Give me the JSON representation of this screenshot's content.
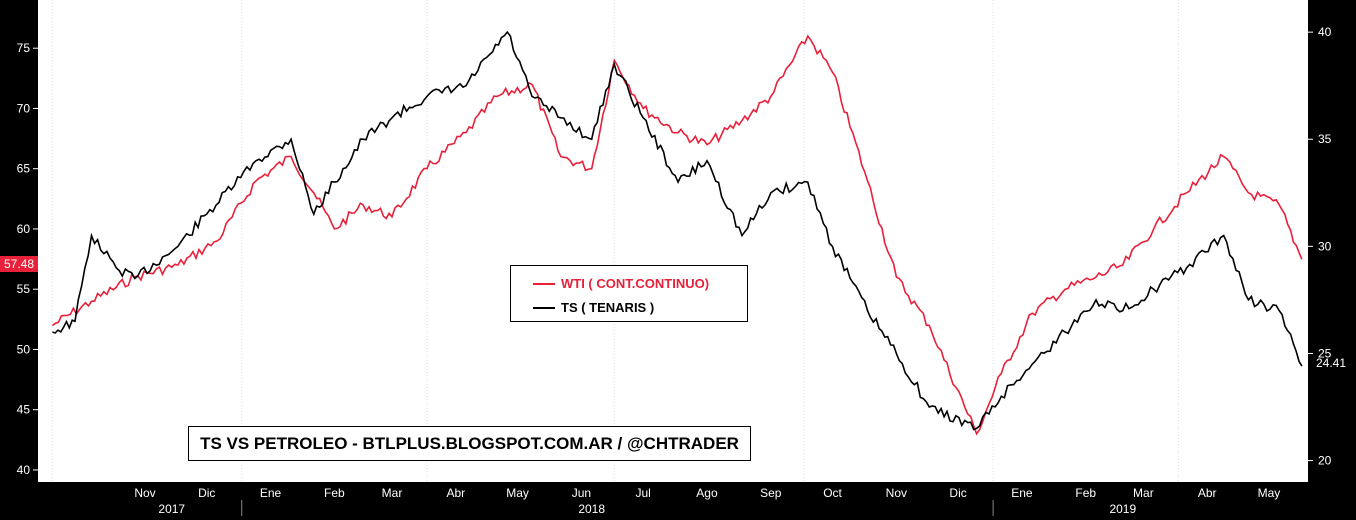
{
  "chart_data": {
    "type": "line",
    "title": "TS VS PETROLEO - BTLPLUS.BLOGSPOT.COM.AR / @CHTRADER",
    "colors": {
      "wti": "#e8203a",
      "ts": "#000000",
      "plot_bg": "#ffffff",
      "frame_bg": "#000000"
    },
    "x_tick_labels": [
      "Nov",
      "Dic",
      "Ene",
      "Feb",
      "Mar",
      "Abr",
      "May",
      "Jun",
      "Jul",
      "Ago",
      "Sep",
      "Oct",
      "Nov",
      "Dic",
      "Ene",
      "Feb",
      "Mar",
      "Abr",
      "May"
    ],
    "year_labels": [
      "2017",
      "2018",
      "2019"
    ],
    "left_axis": {
      "ylim": [
        39,
        79
      ],
      "ticks": [
        40,
        45,
        50,
        55,
        60,
        65,
        70,
        75
      ]
    },
    "right_axis": {
      "ylim": [
        19,
        41.5
      ],
      "ticks": [
        20,
        25,
        30,
        35,
        40
      ]
    },
    "last_value_labels": {
      "wti": "57.48",
      "ts": "24.41"
    },
    "legend_placement": "center",
    "grid": false,
    "series": [
      {
        "name": "WTI ( CONT.CONTINUO)",
        "axis": "left",
        "x": [
          "2017-10-01",
          "2017-10-20",
          "2017-11-10",
          "2017-12-01",
          "2017-12-20",
          "2018-01-08",
          "2018-01-25",
          "2018-02-05",
          "2018-02-15",
          "2018-03-01",
          "2018-03-15",
          "2018-04-01",
          "2018-04-20",
          "2018-05-05",
          "2018-05-22",
          "2018-06-05",
          "2018-06-20",
          "2018-07-01",
          "2018-07-15",
          "2018-08-01",
          "2018-08-15",
          "2018-09-01",
          "2018-09-15",
          "2018-10-03",
          "2018-10-15",
          "2018-11-01",
          "2018-11-15",
          "2018-12-01",
          "2018-12-24",
          "2019-01-05",
          "2019-01-20",
          "2019-02-05",
          "2019-02-20",
          "2019-03-05",
          "2019-03-20",
          "2019-04-05",
          "2019-04-23",
          "2019-05-05",
          "2019-05-20",
          "2019-05-31"
        ],
        "values": [
          52,
          54,
          56,
          57,
          59,
          64,
          66,
          63,
          60,
          62,
          61,
          65,
          68,
          71,
          72,
          66,
          65,
          74,
          70,
          68,
          67,
          69,
          71,
          76,
          73,
          64,
          56,
          52,
          43,
          48,
          53,
          55,
          56,
          57,
          60,
          63,
          66,
          63,
          62,
          57.48
        ]
      },
      {
        "name": "TS ( TENARIS )",
        "axis": "right",
        "x": [
          "2017-10-01",
          "2017-10-12",
          "2017-10-20",
          "2017-11-01",
          "2017-11-10",
          "2017-12-01",
          "2017-12-15",
          "2018-01-08",
          "2018-01-25",
          "2018-02-05",
          "2018-02-15",
          "2018-03-01",
          "2018-03-15",
          "2018-04-01",
          "2018-04-20",
          "2018-05-10",
          "2018-05-22",
          "2018-06-05",
          "2018-06-20",
          "2018-07-01",
          "2018-07-15",
          "2018-08-01",
          "2018-08-15",
          "2018-09-01",
          "2018-09-15",
          "2018-10-03",
          "2018-10-15",
          "2018-11-01",
          "2018-11-15",
          "2018-12-01",
          "2018-12-24",
          "2019-01-05",
          "2019-01-20",
          "2019-02-05",
          "2019-02-20",
          "2019-03-05",
          "2019-03-20",
          "2019-04-05",
          "2019-04-23",
          "2019-05-05",
          "2019-05-20",
          "2019-05-31"
        ],
        "values": [
          26,
          26.5,
          30.5,
          29,
          28.5,
          30,
          31.5,
          34,
          35,
          31.5,
          33,
          35,
          36,
          37,
          37.5,
          40,
          37,
          36,
          35,
          38.5,
          36,
          33,
          34,
          30.5,
          32.5,
          33,
          30,
          27,
          25,
          22.5,
          21.5,
          23,
          24.5,
          26,
          27.5,
          27,
          28,
          29,
          30.5,
          27.5,
          27,
          24.41
        ]
      }
    ]
  }
}
